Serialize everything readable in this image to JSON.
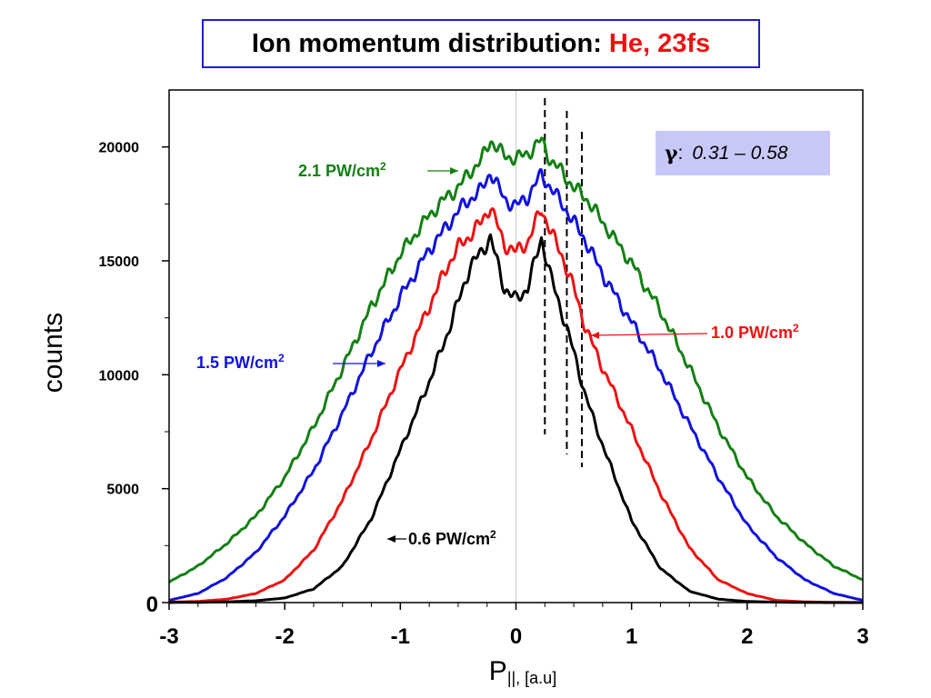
{
  "title": {
    "main": "Ion momentum distribution:",
    "accent": "He, 23fs",
    "accent_color": "#ee1111",
    "border_color": "#1f1fd0"
  },
  "gamma_box": {
    "symbol": "γ",
    "colon": ":",
    "range": "0.31 – 0.58",
    "background": "#c8c8f8"
  },
  "chart_data": {
    "type": "line",
    "xlabel_main": "P",
    "xlabel_sub": "||, [a.u]",
    "ylabel": "counts",
    "xlim": [
      -3,
      3
    ],
    "ylim": [
      0,
      22500
    ],
    "x_ticks": [
      "-3",
      "-2",
      "-1",
      "0",
      "1",
      "2",
      "3"
    ],
    "y_ticks": [
      {
        "value": 0,
        "label": "0"
      },
      {
        "value": 5000,
        "label": "5000"
      },
      {
        "value": 10000,
        "label": "10000"
      },
      {
        "value": 15000,
        "label": "15000"
      },
      {
        "value": 20000,
        "label": "20000"
      }
    ],
    "dashed_lines_x": [
      0.25,
      0.44,
      0.57
    ],
    "x": [
      -3.0,
      -2.75,
      -2.5,
      -2.25,
      -2.0,
      -1.75,
      -1.5,
      -1.25,
      -1.0,
      -0.75,
      -0.6,
      -0.5,
      -0.4,
      -0.3,
      -0.22,
      -0.1,
      0.0,
      0.1,
      0.22,
      0.3,
      0.4,
      0.5,
      0.6,
      0.75,
      1.0,
      1.25,
      1.5,
      1.75,
      2.0,
      2.25,
      2.5,
      2.75,
      3.0
    ],
    "series": [
      {
        "name": "2.1 PW/cm²",
        "color": "#138013",
        "values": [
          900,
          1600,
          2600,
          3800,
          5500,
          7700,
          10300,
          13000,
          15300,
          17000,
          17800,
          18200,
          18900,
          19400,
          20300,
          19600,
          19500,
          19700,
          20300,
          19400,
          18900,
          18200,
          17800,
          16700,
          14900,
          12800,
          10300,
          7700,
          5500,
          3800,
          2600,
          1600,
          1000
        ]
      },
      {
        "name": "1.5 PW/cm²",
        "color": "#1111dd",
        "values": [
          100,
          400,
          1100,
          2200,
          3800,
          5800,
          8300,
          11000,
          13400,
          15500,
          16500,
          17200,
          17700,
          18100,
          18900,
          17700,
          17400,
          17800,
          18800,
          18200,
          17500,
          16700,
          15900,
          14400,
          12300,
          10200,
          7800,
          5500,
          3400,
          2000,
          1000,
          400,
          100
        ]
      },
      {
        "name": "1.0 PW/cm²",
        "color": "#ee1111",
        "values": [
          20,
          50,
          150,
          400,
          1000,
          2300,
          4500,
          7200,
          10200,
          13000,
          14700,
          15600,
          16100,
          16700,
          17400,
          15700,
          15400,
          15800,
          17300,
          16300,
          15200,
          13800,
          12100,
          10300,
          7600,
          4800,
          2400,
          1000,
          400,
          100,
          30,
          10,
          0
        ]
      },
      {
        "name": "0.6 PW/cm²",
        "color": "#000000",
        "values": [
          5,
          10,
          30,
          80,
          200,
          600,
          1600,
          3700,
          6700,
          9700,
          11700,
          13200,
          14700,
          15400,
          16000,
          13800,
          13300,
          13800,
          16000,
          14300,
          12700,
          11000,
          9100,
          6900,
          3600,
          1500,
          500,
          150,
          50,
          20,
          5,
          0,
          0
        ]
      }
    ],
    "labels": [
      {
        "text": "2.1 PW/cm",
        "sup": "2",
        "color": "#138013"
      },
      {
        "text": "1.5 PW/cm",
        "sup": "2",
        "color": "#1111dd"
      },
      {
        "text": "1.0 PW/cm",
        "sup": "2",
        "color": "#ee1111"
      },
      {
        "text": "0.6 PW/cm",
        "sup": "2",
        "color": "#000000"
      }
    ]
  }
}
